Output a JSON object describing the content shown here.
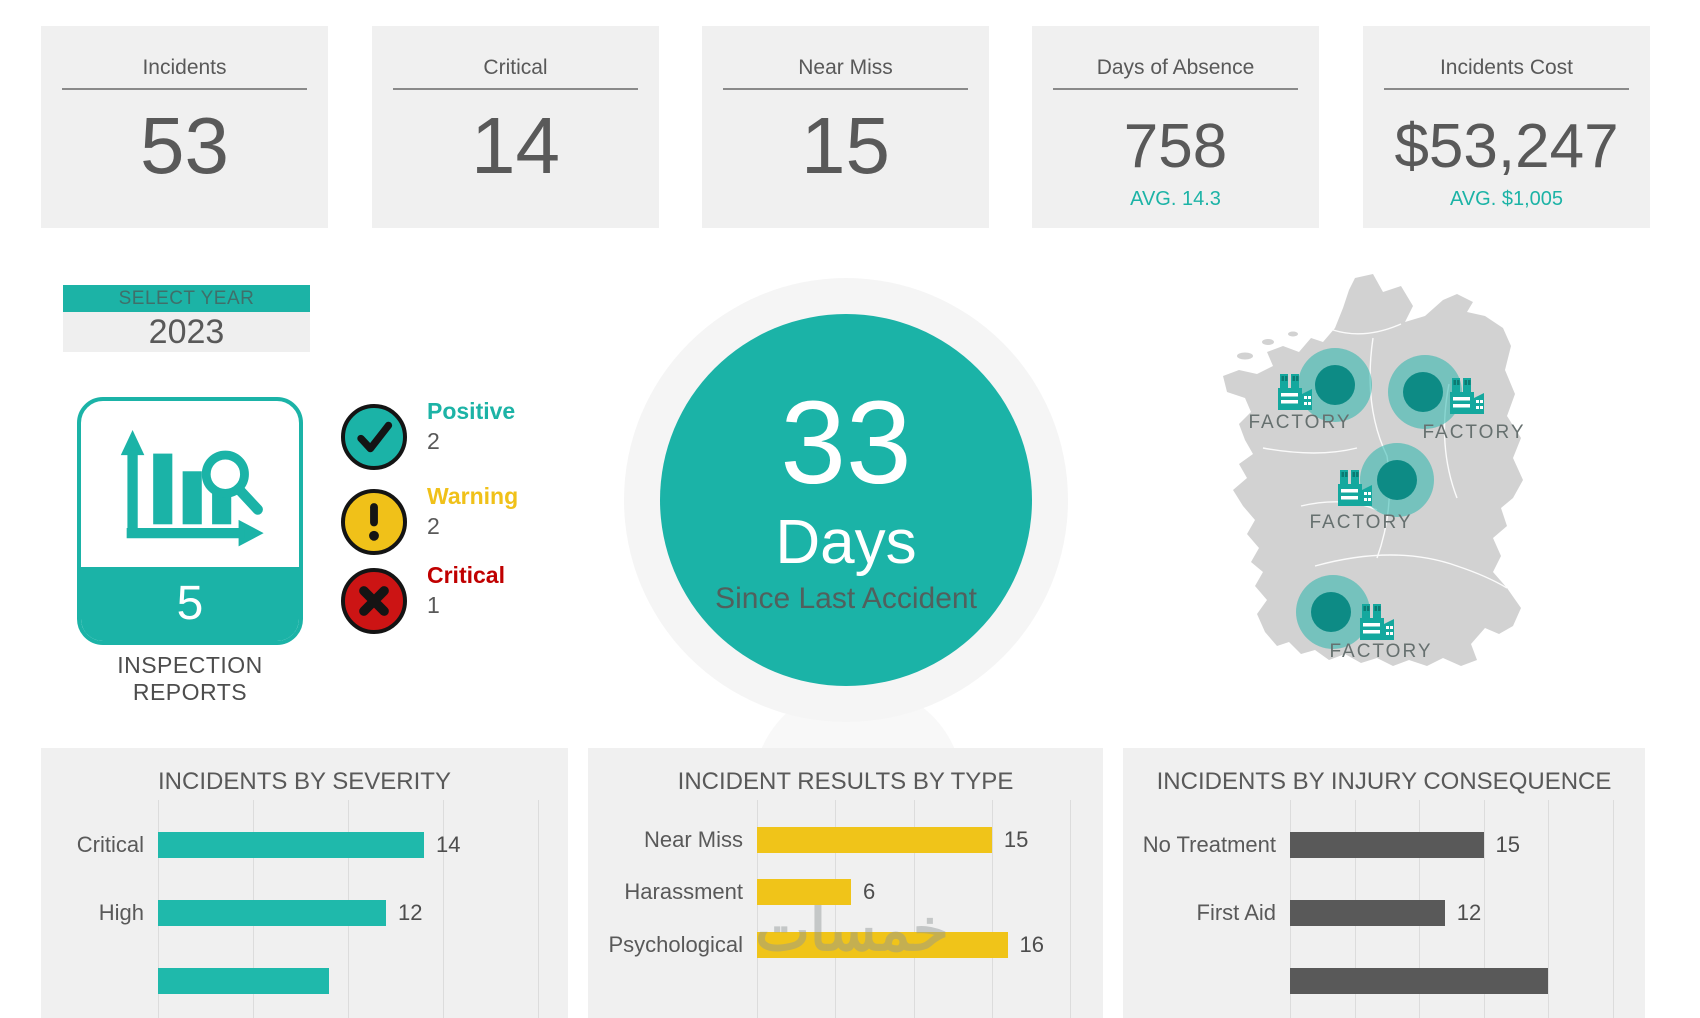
{
  "kpi_cards": [
    {
      "label": "Incidents",
      "value": "53",
      "avg": ""
    },
    {
      "label": "Critical",
      "value": "14",
      "avg": ""
    },
    {
      "label": "Near Miss",
      "value": "15",
      "avg": ""
    },
    {
      "label": "Days of Absence",
      "value": "758",
      "avg": "AVG. 14.3"
    },
    {
      "label": "Incidents Cost",
      "value": "$53,247",
      "avg": "AVG. $1,005"
    }
  ],
  "year_selector": {
    "title": "SELECT YEAR",
    "value": "2023"
  },
  "inspection": {
    "count": "5",
    "label": "INSPECTION REPORTS"
  },
  "statuses": [
    {
      "label": "Positive",
      "count": "2",
      "color": "#1bb3a7",
      "label_color": "#1cb3a6",
      "icon": "check"
    },
    {
      "label": "Warning",
      "count": "2",
      "color": "#f0c119",
      "label_color": "#f0c119",
      "icon": "exclamation"
    },
    {
      "label": "Critical",
      "count": "1",
      "color": "#cc1414",
      "label_color": "#c00000",
      "icon": "cross"
    }
  ],
  "accident_counter": {
    "value": "33",
    "unit": "Days",
    "caption": "Since Last Accident"
  },
  "map": {
    "markers": [
      "FACTORY",
      "FACTORY",
      "FACTORY",
      "FACTORY"
    ]
  },
  "chart_data": [
    {
      "type": "bar",
      "orientation": "horizontal",
      "title": "INCIDENTS BY SEVERITY",
      "categories": [
        "Critical",
        "High",
        ""
      ],
      "values": [
        14,
        12,
        9
      ],
      "color": "#1fb9ab",
      "xlim": [
        0,
        20
      ],
      "grid": true,
      "note": "third bar cut off by screen bottom, its label/value not visible; 9 estimated from bar length"
    },
    {
      "type": "bar",
      "orientation": "horizontal",
      "title": "INCIDENT RESULTS BY TYPE",
      "categories": [
        "Near Miss",
        "Harassment",
        "Psychological"
      ],
      "values": [
        15,
        6,
        16
      ],
      "color": "#f0c419",
      "xlim": [
        0,
        20
      ],
      "grid": true
    },
    {
      "type": "bar",
      "orientation": "horizontal",
      "title": "INCIDENTS BY INJURY CONSEQUENCE",
      "categories": [
        "No Treatment",
        "First Aid",
        ""
      ],
      "values": [
        15,
        12,
        20
      ],
      "color": "#595959",
      "xlim": [
        0,
        25
      ],
      "grid": true,
      "note": "third bar cut off by screen bottom, its label/value not visible; 20 estimated from bar length"
    }
  ],
  "watermark": "خمسات",
  "colors": {
    "teal": "#1bb3a7",
    "teal_dark": "#0d8b85",
    "teal_light": "rgba(24,178,168,0.5)",
    "yellow": "#f0c119",
    "red": "#cc1414",
    "text_gray": "#595959",
    "panel_bg": "#f0f0f0",
    "map_gray": "#d2d2d2"
  }
}
